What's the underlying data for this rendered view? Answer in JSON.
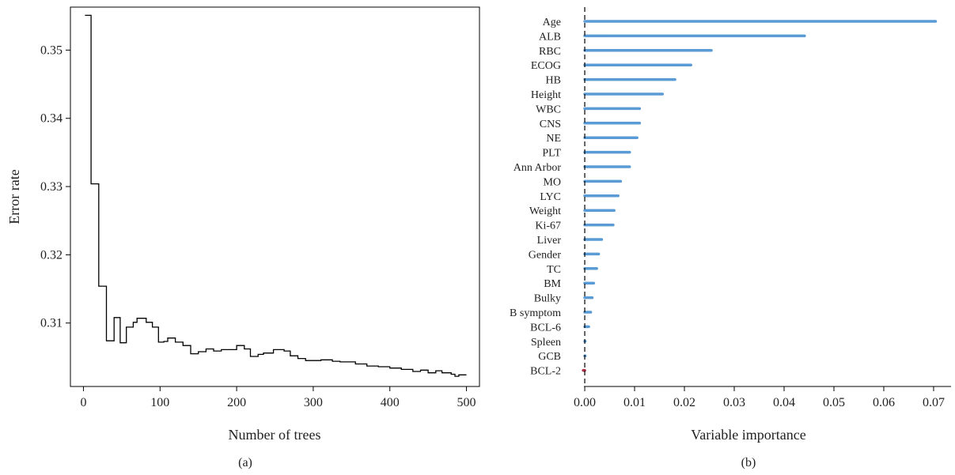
{
  "chart_data": [
    {
      "type": "line",
      "panel_label": "(a)",
      "xlabel": "Number of trees",
      "ylabel": "Error rate",
      "xlim": [
        -17,
        517
      ],
      "ylim": [
        0.3007,
        0.3563
      ],
      "xticks": [
        0,
        100,
        200,
        300,
        400,
        500
      ],
      "yticks": [
        0.31,
        0.32,
        0.33,
        0.34,
        0.35
      ],
      "ytick_labels": [
        "0.31",
        "0.32",
        "0.33",
        "0.34",
        "0.35"
      ],
      "step": true,
      "series": [
        {
          "color": "#000000",
          "points": [
            [
              2,
              0.3551
            ],
            [
              10,
              0.3551
            ],
            [
              10,
              0.3304
            ],
            [
              20,
              0.3304
            ],
            [
              20,
              0.3154
            ],
            [
              30,
              0.3154
            ],
            [
              30,
              0.3074
            ],
            [
              40,
              0.3074
            ],
            [
              40,
              0.3108
            ],
            [
              48,
              0.3108
            ],
            [
              48,
              0.3071
            ],
            [
              56,
              0.3071
            ],
            [
              56,
              0.3094
            ],
            [
              65,
              0.3094
            ],
            [
              65,
              0.3101
            ],
            [
              70,
              0.3101
            ],
            [
              70,
              0.3107
            ],
            [
              82,
              0.3107
            ],
            [
              82,
              0.3101
            ],
            [
              90,
              0.3101
            ],
            [
              90,
              0.3094
            ],
            [
              98,
              0.3094
            ],
            [
              98,
              0.3072
            ],
            [
              105,
              0.3072
            ],
            [
              105,
              0.3073
            ],
            [
              110,
              0.3073
            ],
            [
              110,
              0.3078
            ],
            [
              120,
              0.3078
            ],
            [
              120,
              0.3072
            ],
            [
              130,
              0.3072
            ],
            [
              130,
              0.3067
            ],
            [
              140,
              0.3067
            ],
            [
              140,
              0.3055
            ],
            [
              150,
              0.3055
            ],
            [
              150,
              0.3058
            ],
            [
              160,
              0.3058
            ],
            [
              160,
              0.3062
            ],
            [
              170,
              0.3062
            ],
            [
              170,
              0.3059
            ],
            [
              180,
              0.3059
            ],
            [
              180,
              0.3061
            ],
            [
              200,
              0.3061
            ],
            [
              200,
              0.3067
            ],
            [
              210,
              0.3067
            ],
            [
              210,
              0.3062
            ],
            [
              218,
              0.3062
            ],
            [
              218,
              0.3051
            ],
            [
              228,
              0.3051
            ],
            [
              228,
              0.3054
            ],
            [
              235,
              0.3054
            ],
            [
              235,
              0.3056
            ],
            [
              248,
              0.3056
            ],
            [
              248,
              0.3061
            ],
            [
              262,
              0.3061
            ],
            [
              262,
              0.3059
            ],
            [
              270,
              0.3059
            ],
            [
              270,
              0.3052
            ],
            [
              280,
              0.3052
            ],
            [
              280,
              0.3048
            ],
            [
              290,
              0.3048
            ],
            [
              290,
              0.3045
            ],
            [
              310,
              0.3045
            ],
            [
              310,
              0.3046
            ],
            [
              325,
              0.3046
            ],
            [
              325,
              0.3044
            ],
            [
              335,
              0.3044
            ],
            [
              335,
              0.3043
            ],
            [
              355,
              0.3043
            ],
            [
              355,
              0.304
            ],
            [
              370,
              0.304
            ],
            [
              370,
              0.3037
            ],
            [
              385,
              0.3037
            ],
            [
              385,
              0.3036
            ],
            [
              400,
              0.3036
            ],
            [
              400,
              0.3034
            ],
            [
              415,
              0.3034
            ],
            [
              415,
              0.3032
            ],
            [
              430,
              0.3032
            ],
            [
              430,
              0.3029
            ],
            [
              440,
              0.3029
            ],
            [
              440,
              0.3031
            ],
            [
              450,
              0.3031
            ],
            [
              450,
              0.3027
            ],
            [
              460,
              0.3027
            ],
            [
              460,
              0.303
            ],
            [
              468,
              0.303
            ],
            [
              468,
              0.3027
            ],
            [
              480,
              0.3027
            ],
            [
              480,
              0.3025
            ],
            [
              485,
              0.3025
            ],
            [
              485,
              0.3022
            ],
            [
              490,
              0.3022
            ],
            [
              490,
              0.3024
            ],
            [
              500,
              0.3024
            ]
          ]
        }
      ]
    },
    {
      "type": "bar",
      "orientation": "horizontal",
      "panel_label": "(b)",
      "xlabel": "Variable importance",
      "xlim": [
        -0.0035,
        0.0735
      ],
      "xticks": [
        0.0,
        0.01,
        0.02,
        0.03,
        0.04,
        0.05,
        0.06,
        0.07
      ],
      "xtick_labels": [
        "0.00",
        "0.01",
        "0.02",
        "0.03",
        "0.04",
        "0.05",
        "0.06",
        "0.07"
      ],
      "bar_color": "#5b9bd5",
      "negative_color": "#b0304a",
      "reference_line": {
        "x": 0,
        "style": "dashed",
        "color": "#000000"
      },
      "categories": [
        "Age",
        "ALB",
        "RBC",
        "ECOG",
        "HB",
        "Height",
        "WBC",
        "CNS",
        "NE",
        "PLT",
        "Ann Arbor",
        "MO",
        "LYC",
        "Weight",
        "Ki-67",
        "Liver",
        "Gender",
        "TC",
        "BM",
        "Bulky",
        "B symptom",
        "BCL-6",
        "Spleen",
        "GCB",
        "BCL-2"
      ],
      "values": [
        0.0704,
        0.0441,
        0.0254,
        0.0213,
        0.0181,
        0.0156,
        0.011,
        0.011,
        0.0105,
        0.009,
        0.009,
        0.0072,
        0.0067,
        0.0059,
        0.0057,
        0.0034,
        0.0028,
        0.0024,
        0.0018,
        0.0015,
        0.0012,
        0.0008,
        0.0001,
        0.0001,
        -0.0003
      ]
    }
  ]
}
